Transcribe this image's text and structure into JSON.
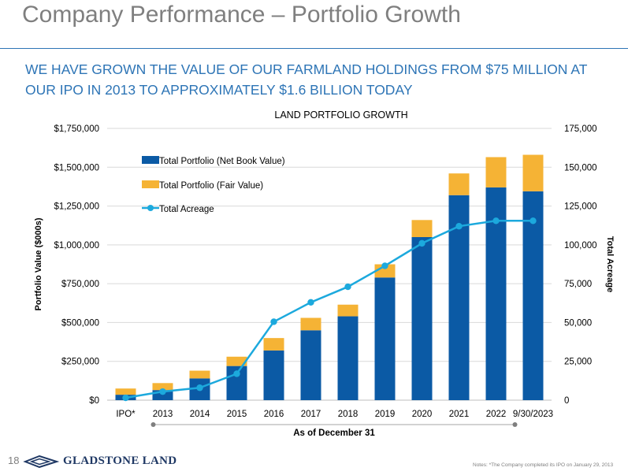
{
  "slide": {
    "title": "Company Performance – Portfolio Growth",
    "headline": "WE HAVE GROWN THE VALUE OF OUR FARMLAND HOLDINGS FROM $75 MILLION AT OUR IPO IN 2013 TO APPROXIMATELY $1.6 BILLION TODAY",
    "page_number": "18",
    "logo_text": "GLADSTONE LAND",
    "footnote": "Notes: *The Company completed its IPO on January 29, 2013"
  },
  "colors": {
    "net_book": "#0b5aa5",
    "fair_value": "#f5b335",
    "acreage": "#1ca9dd",
    "headline": "#2e75b6"
  },
  "chart_data": {
    "type": "bar",
    "stacked": true,
    "title": "LAND PORTFOLIO GROWTH",
    "categories": [
      "IPO*",
      "2013",
      "2014",
      "2015",
      "2016",
      "2017",
      "2018",
      "2019",
      "2020",
      "2021",
      "2022",
      "9/30/2023"
    ],
    "series": [
      {
        "name": "Total Portfolio (Net Book Value)",
        "type": "bar",
        "axis": "left",
        "values": [
          35000,
          65000,
          140000,
          220000,
          320000,
          450000,
          540000,
          790000,
          1050000,
          1320000,
          1370000,
          1345000
        ]
      },
      {
        "name": "Total Portfolio (Fair Value)",
        "type": "bar",
        "axis": "left",
        "note": "values are the increment stacked above net book value",
        "values": [
          40000,
          45000,
          50000,
          60000,
          80000,
          80000,
          75000,
          85000,
          110000,
          140000,
          195000,
          235000
        ]
      },
      {
        "name": "Total Acreage",
        "type": "line",
        "axis": "right",
        "values": [
          1500,
          5500,
          8000,
          17000,
          50500,
          63000,
          73000,
          86500,
          101000,
          112000,
          115500,
          115500
        ]
      }
    ],
    "ylabel": "Portfolio Value ($000s)",
    "y2label": "Total Acreage",
    "xlabel": "As of December 31",
    "ylim": [
      0,
      1750000
    ],
    "y2lim": [
      0,
      175000
    ],
    "yticks": [
      "$0",
      "$250,000",
      "$500,000",
      "$750,000",
      "$1,000,000",
      "$1,250,000",
      "$1,500,000",
      "$1,750,000"
    ],
    "y2ticks": [
      "0",
      "25,000",
      "50,000",
      "75,000",
      "100,000",
      "125,000",
      "150,000",
      "175,000"
    ],
    "grid": true,
    "legend": "top-left"
  }
}
